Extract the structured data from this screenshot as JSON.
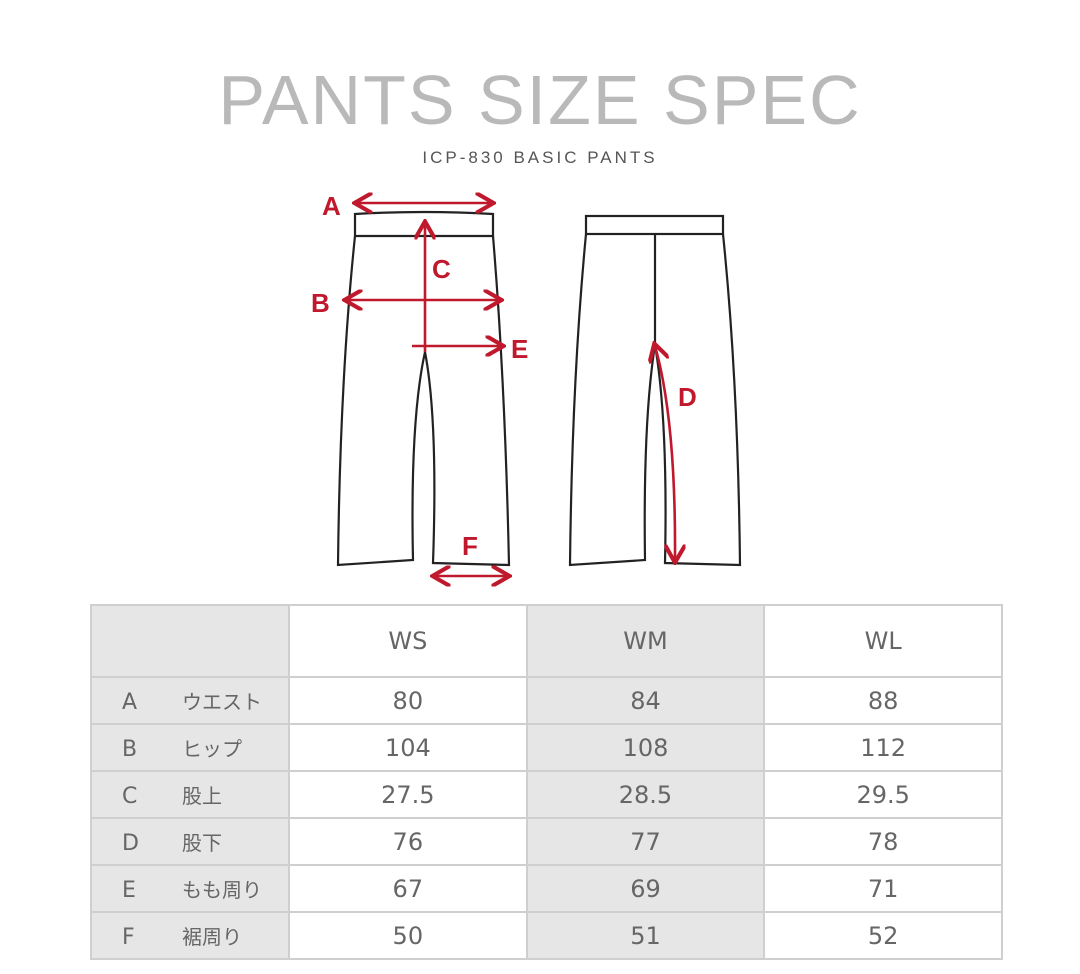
{
  "title": "PANTS SIZE SPEC",
  "subtitle": "ICP-830 BASIC PANTS",
  "diagram": {
    "labels": [
      "A",
      "B",
      "C",
      "D",
      "E",
      "F"
    ],
    "accent": "#c0182c"
  },
  "table": {
    "columns": [
      "WS",
      "WM",
      "WL"
    ],
    "rows": [
      {
        "key": "A",
        "name": "ウエスト",
        "values": [
          "80",
          "84",
          "88"
        ]
      },
      {
        "key": "B",
        "name": "ヒップ",
        "values": [
          "104",
          "108",
          "112"
        ]
      },
      {
        "key": "C",
        "name": "股上",
        "values": [
          "27.5",
          "28.5",
          "29.5"
        ]
      },
      {
        "key": "D",
        "name": "股下",
        "values": [
          "76",
          "77",
          "78"
        ]
      },
      {
        "key": "E",
        "name": "もも周り",
        "values": [
          "67",
          "69",
          "71"
        ]
      },
      {
        "key": "F",
        "name": "裾周り",
        "values": [
          "50",
          "51",
          "52"
        ]
      }
    ]
  }
}
